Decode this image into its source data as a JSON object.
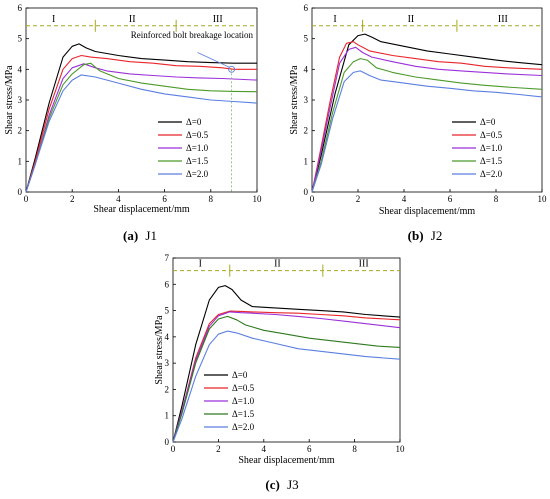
{
  "chart_data": [
    {
      "type": "line",
      "caption_letter": "(a)",
      "caption_name": "J1",
      "xlabel": "Shear displacement/mm",
      "ylabel": "Shear stress/MPa",
      "xlim": [
        0,
        10
      ],
      "ylim": [
        0,
        6
      ],
      "xticks": [
        0,
        2,
        4,
        6,
        8,
        10
      ],
      "yticks": [
        0,
        1,
        2,
        3,
        4,
        5,
        6
      ],
      "legend_position": "center-right",
      "stage_line_y": 5.42,
      "stage_dividers": [
        3.0,
        6.5
      ],
      "stage_labels": [
        {
          "x": 1.2,
          "text": "I"
        },
        {
          "x": 4.6,
          "text": "II"
        },
        {
          "x": 8.3,
          "text": "III"
        }
      ],
      "annotation": {
        "text": "Reinforced bolt breakage location",
        "x": 8.9,
        "y": 4.0
      },
      "series": [
        {
          "name": "Δ=0",
          "color": "#000000",
          "x": [
            0,
            0.4,
            1.0,
            1.6,
            2.0,
            2.3,
            2.6,
            3.0,
            4.0,
            5.0,
            6.0,
            7.0,
            8.0,
            9.0,
            10.0
          ],
          "y": [
            0,
            1.1,
            2.9,
            4.4,
            4.75,
            4.83,
            4.7,
            4.58,
            4.45,
            4.35,
            4.3,
            4.25,
            4.22,
            4.2,
            4.2
          ]
        },
        {
          "name": "Δ=0.5",
          "color": "#e8252b",
          "x": [
            0,
            0.4,
            1.0,
            1.6,
            2.0,
            2.4,
            2.8,
            3.5,
            4.5,
            5.5,
            6.5,
            7.5,
            8.5,
            9.0,
            10.0
          ],
          "y": [
            0,
            1.0,
            2.7,
            4.0,
            4.35,
            4.45,
            4.4,
            4.35,
            4.25,
            4.2,
            4.12,
            4.1,
            4.05,
            4.0,
            4.0
          ]
        },
        {
          "name": "Δ=1.0",
          "color": "#9b30d9",
          "x": [
            0,
            0.4,
            1.0,
            1.6,
            2.0,
            2.5,
            3.0,
            3.5,
            4.5,
            5.5,
            6.5,
            7.5,
            8.5,
            10.0
          ],
          "y": [
            0,
            0.9,
            2.5,
            3.7,
            4.05,
            4.18,
            4.05,
            3.95,
            3.85,
            3.8,
            3.75,
            3.72,
            3.7,
            3.65
          ]
        },
        {
          "name": "Δ=1.5",
          "color": "#4c9a2a",
          "x": [
            0,
            0.4,
            1.0,
            1.6,
            2.0,
            2.5,
            2.8,
            3.2,
            4.0,
            5.0,
            6.0,
            7.0,
            8.0,
            9.0,
            10.0
          ],
          "y": [
            0,
            0.9,
            2.4,
            3.5,
            3.85,
            4.15,
            4.2,
            3.95,
            3.7,
            3.55,
            3.45,
            3.35,
            3.3,
            3.28,
            3.27
          ]
        },
        {
          "name": "Δ=2.0",
          "color": "#5b7fe0",
          "x": [
            0,
            0.4,
            1.0,
            1.6,
            2.0,
            2.4,
            3.0,
            4.0,
            5.0,
            6.0,
            7.0,
            8.0,
            9.0,
            10.0
          ],
          "y": [
            0,
            0.9,
            2.3,
            3.3,
            3.65,
            3.82,
            3.75,
            3.55,
            3.35,
            3.2,
            3.1,
            3.0,
            2.95,
            2.9
          ]
        }
      ]
    },
    {
      "type": "line",
      "caption_letter": "(b)",
      "caption_name": "J2",
      "xlabel": "Shear displacement/mm",
      "ylabel": "Shear stress/MPa",
      "xlim": [
        0,
        10
      ],
      "ylim": [
        0,
        6
      ],
      "xticks": [
        0,
        2,
        4,
        6,
        8,
        10
      ],
      "yticks": [
        0,
        1,
        2,
        3,
        4,
        5,
        6
      ],
      "legend_position": "center-right",
      "stage_line_y": 5.42,
      "stage_dividers": [
        2.2,
        6.3
      ],
      "stage_labels": [
        {
          "x": 1.0,
          "text": "I"
        },
        {
          "x": 4.3,
          "text": "II"
        },
        {
          "x": 8.3,
          "text": "III"
        }
      ],
      "annotation": null,
      "series": [
        {
          "name": "Δ=0",
          "color": "#000000",
          "x": [
            0,
            0.4,
            1.0,
            1.6,
            2.0,
            2.3,
            2.6,
            3.0,
            4.0,
            5.0,
            6.0,
            7.0,
            8.0,
            9.0,
            10.0
          ],
          "y": [
            0,
            1.2,
            3.2,
            4.8,
            5.1,
            5.15,
            5.05,
            4.9,
            4.75,
            4.6,
            4.5,
            4.4,
            4.3,
            4.22,
            4.15
          ]
        },
        {
          "name": "Δ=0.5",
          "color": "#e8252b",
          "x": [
            0,
            0.3,
            0.8,
            1.2,
            1.5,
            1.8,
            2.0,
            2.5,
            3.5,
            4.5,
            5.5,
            6.5,
            7.5,
            8.5,
            10.0
          ],
          "y": [
            0,
            1.1,
            3.0,
            4.4,
            4.85,
            4.9,
            4.8,
            4.6,
            4.45,
            4.35,
            4.25,
            4.2,
            4.1,
            4.05,
            4.0
          ]
        },
        {
          "name": "Δ=1.0",
          "color": "#9b30d9",
          "x": [
            0,
            0.3,
            0.8,
            1.2,
            1.6,
            1.9,
            2.2,
            2.6,
            3.5,
            4.5,
            5.5,
            6.5,
            7.5,
            8.5,
            10.0
          ],
          "y": [
            0,
            1.0,
            2.8,
            4.2,
            4.65,
            4.72,
            4.55,
            4.4,
            4.25,
            4.1,
            4.0,
            3.95,
            3.9,
            3.85,
            3.8
          ]
        },
        {
          "name": "Δ=1.5",
          "color": "#4c9a2a",
          "x": [
            0,
            0.4,
            0.9,
            1.4,
            1.8,
            2.1,
            2.4,
            2.8,
            3.5,
            4.5,
            5.5,
            6.5,
            7.5,
            8.5,
            10.0
          ],
          "y": [
            0,
            1.0,
            2.6,
            3.9,
            4.25,
            4.35,
            4.3,
            4.05,
            3.9,
            3.75,
            3.65,
            3.55,
            3.48,
            3.42,
            3.35
          ]
        },
        {
          "name": "Δ=2.0",
          "color": "#5b7fe0",
          "x": [
            0,
            0.4,
            0.9,
            1.4,
            1.8,
            2.1,
            2.5,
            3.0,
            4.0,
            5.0,
            6.0,
            7.0,
            8.0,
            9.0,
            10.0
          ],
          "y": [
            0,
            0.9,
            2.4,
            3.6,
            3.9,
            3.95,
            3.8,
            3.65,
            3.55,
            3.45,
            3.38,
            3.3,
            3.25,
            3.18,
            3.1
          ]
        }
      ]
    },
    {
      "type": "line",
      "caption_letter": "(c)",
      "caption_name": "J3",
      "xlabel": "Shear displacement/mm",
      "ylabel": "Shear stress/MPa",
      "xlim": [
        0,
        10
      ],
      "ylim": [
        0,
        7
      ],
      "xticks": [
        0,
        2,
        4,
        6,
        8,
        10
      ],
      "yticks": [
        0,
        1,
        2,
        3,
        4,
        5,
        6,
        7
      ],
      "legend_position": "bottom-left",
      "stage_line_y": 6.52,
      "stage_dividers": [
        2.5,
        6.6
      ],
      "stage_labels": [
        {
          "x": 1.2,
          "text": "I"
        },
        {
          "x": 4.6,
          "text": "II"
        },
        {
          "x": 8.4,
          "text": "III"
        }
      ],
      "annotation": null,
      "series": [
        {
          "name": "Δ=0",
          "color": "#000000",
          "x": [
            0,
            0.4,
            1.0,
            1.6,
            2.0,
            2.3,
            2.6,
            3.0,
            3.5,
            4.5,
            5.5,
            6.5,
            7.5,
            8.5,
            10.0
          ],
          "y": [
            0,
            1.4,
            3.7,
            5.4,
            5.88,
            5.95,
            5.8,
            5.4,
            5.15,
            5.1,
            5.05,
            5.0,
            4.95,
            4.85,
            4.75
          ]
        },
        {
          "name": "Δ=0.5",
          "color": "#e8252b",
          "x": [
            0,
            0.4,
            1.0,
            1.6,
            2.0,
            2.5,
            3.0,
            3.5,
            4.5,
            5.5,
            6.5,
            7.5,
            8.5,
            10.0
          ],
          "y": [
            0,
            1.2,
            3.2,
            4.5,
            4.85,
            4.98,
            4.97,
            4.95,
            4.92,
            4.9,
            4.85,
            4.8,
            4.72,
            4.65
          ]
        },
        {
          "name": "Δ=1.0",
          "color": "#9b30d9",
          "x": [
            0,
            0.4,
            1.0,
            1.6,
            2.0,
            2.5,
            3.0,
            3.5,
            4.5,
            5.5,
            6.5,
            7.5,
            8.5,
            10.0
          ],
          "y": [
            0,
            1.2,
            3.1,
            4.4,
            4.8,
            4.95,
            4.92,
            4.9,
            4.85,
            4.78,
            4.7,
            4.6,
            4.5,
            4.35
          ]
        },
        {
          "name": "Δ=1.5",
          "color": "#2f7a1e",
          "x": [
            0,
            0.4,
            1.0,
            1.6,
            2.0,
            2.4,
            2.8,
            3.2,
            4.0,
            5.0,
            6.0,
            7.0,
            8.0,
            9.0,
            10.0
          ],
          "y": [
            0,
            1.1,
            3.0,
            4.3,
            4.68,
            4.78,
            4.65,
            4.45,
            4.25,
            4.1,
            3.95,
            3.85,
            3.75,
            3.65,
            3.6
          ]
        },
        {
          "name": "Δ=2.0",
          "color": "#5b7fe0",
          "x": [
            0,
            0.4,
            1.0,
            1.6,
            2.0,
            2.4,
            2.8,
            3.5,
            4.5,
            5.5,
            6.5,
            7.5,
            8.5,
            10.0
          ],
          "y": [
            0,
            0.9,
            2.5,
            3.7,
            4.1,
            4.22,
            4.15,
            3.95,
            3.75,
            3.55,
            3.45,
            3.35,
            3.25,
            3.15
          ]
        }
      ]
    }
  ]
}
